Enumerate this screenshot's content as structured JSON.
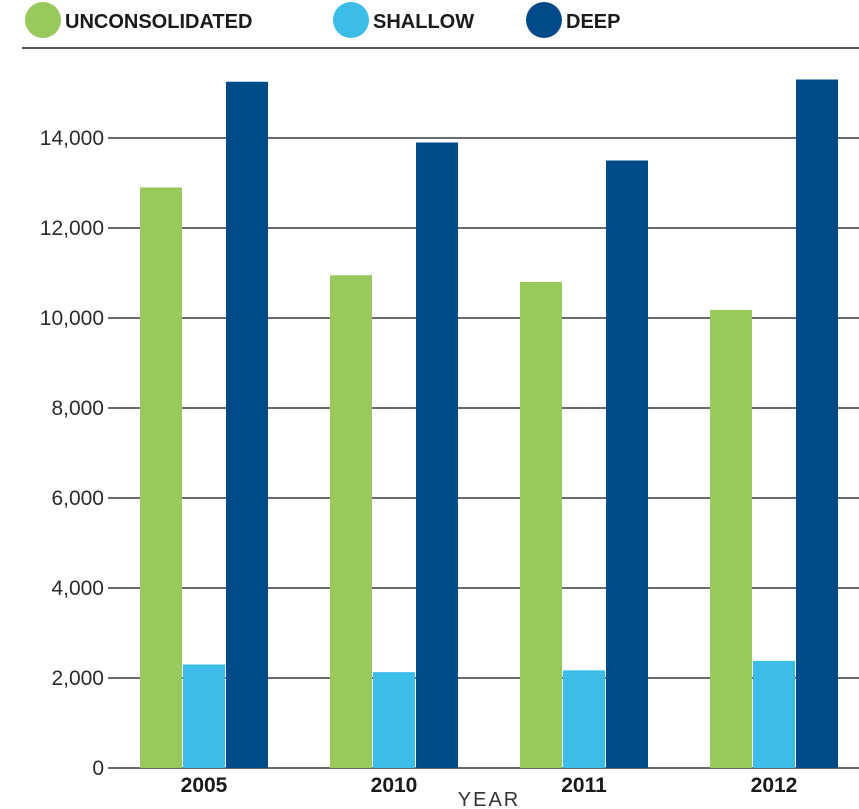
{
  "chart_data": {
    "type": "bar",
    "categories": [
      "2005",
      "2010",
      "2011",
      "2012"
    ],
    "series": [
      {
        "name": "UNCONSOLIDATED",
        "values": [
          12900,
          10950,
          10800,
          10180
        ]
      },
      {
        "name": "SHALLOW",
        "values": [
          2300,
          2130,
          2170,
          2380
        ]
      },
      {
        "name": "DEEP",
        "values": [
          15250,
          13900,
          13500,
          15300
        ]
      }
    ],
    "xlabel": "YEAR",
    "ylabel": "",
    "ylim": [
      0,
      15500
    ],
    "yticks": [
      0,
      2000,
      4000,
      6000,
      8000,
      10000,
      12000,
      14000
    ],
    "ytick_labels": [
      "0",
      "2,000",
      "4,000",
      "6,000",
      "8,000",
      "10,000",
      "12,000",
      "14,000"
    ],
    "grid": true,
    "legend_position": "top-left"
  },
  "colors": {
    "UNCONSOLIDATED": "#98c95a",
    "SHALLOW": "#3bbde8",
    "DEEP": "#004a87",
    "grid": "#3a3a3a"
  }
}
